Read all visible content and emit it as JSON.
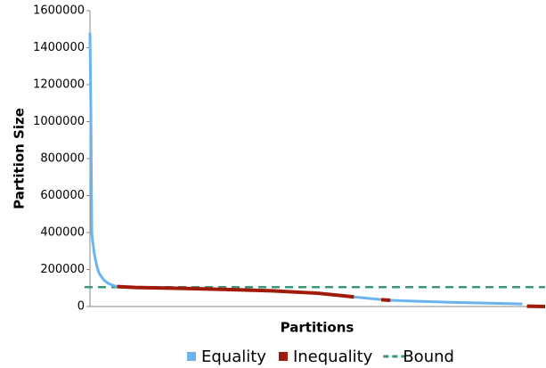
{
  "chart_data": {
    "type": "line",
    "xlabel": "Partitions",
    "ylabel": "Partition Size",
    "x": [
      0,
      0.2,
      0.4,
      0.6,
      1,
      1.5,
      2,
      3,
      4,
      5,
      6,
      10,
      20,
      30,
      40,
      50,
      58,
      62,
      64,
      66,
      70,
      80,
      90,
      95,
      96,
      100
    ],
    "xlim": [
      0,
      100
    ],
    "ylim": [
      0,
      1600000
    ],
    "yticks": [
      0,
      200000,
      400000,
      600000,
      800000,
      1000000,
      1200000,
      1400000,
      1600000
    ],
    "series": [
      {
        "name": "Equality",
        "color": "#6cb4f0",
        "values": [
          1480000,
          1050000,
          400000,
          350000,
          280000,
          220000,
          180000,
          145000,
          125000,
          115000,
          108000,
          null,
          null,
          null,
          null,
          null,
          52000,
          42000,
          38000,
          34000,
          30000,
          22000,
          17000,
          14000,
          null,
          null
        ]
      },
      {
        "name": "Inequality",
        "color": "#a01a0a",
        "values": [
          null,
          null,
          null,
          null,
          null,
          null,
          null,
          null,
          null,
          null,
          108000,
          103000,
          98000,
          92000,
          85000,
          72000,
          52000,
          null,
          37000,
          34000,
          null,
          null,
          null,
          null,
          2000,
          0
        ]
      }
    ],
    "bound": {
      "name": "Bound",
      "color": "#3a9a78",
      "value": 105000
    }
  }
}
